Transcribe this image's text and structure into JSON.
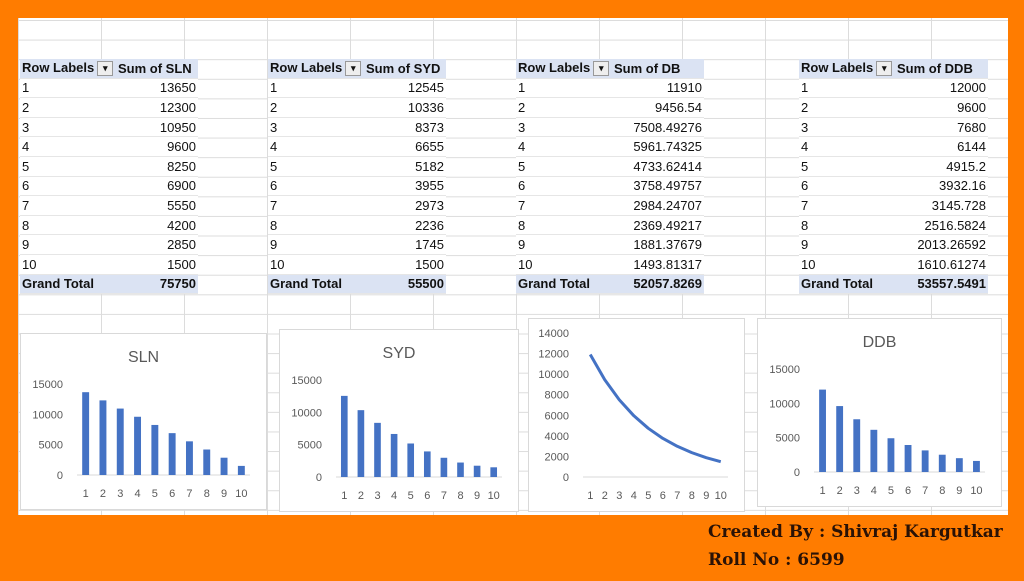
{
  "tables": [
    {
      "row_label": "Row Labels",
      "header": "Sum of SLN",
      "rows": [
        "1",
        "2",
        "3",
        "4",
        "5",
        "6",
        "7",
        "8",
        "9",
        "10"
      ],
      "values": [
        "13650",
        "12300",
        "10950",
        "9600",
        "8250",
        "6900",
        "5550",
        "4200",
        "2850",
        "1500"
      ],
      "total_label": "Grand Total",
      "total": "75750"
    },
    {
      "row_label": "Row Labels",
      "header": "Sum of SYD",
      "rows": [
        "1",
        "2",
        "3",
        "4",
        "5",
        "6",
        "7",
        "8",
        "9",
        "10"
      ],
      "values": [
        "12545",
        "10336",
        "8373",
        "6655",
        "5182",
        "3955",
        "2973",
        "2236",
        "1745",
        "1500"
      ],
      "total_label": "Grand Total",
      "total": "55500"
    },
    {
      "row_label": "Row Labels",
      "header": "Sum of DB",
      "rows": [
        "1",
        "2",
        "3",
        "4",
        "5",
        "6",
        "7",
        "8",
        "9",
        "10"
      ],
      "values": [
        "11910",
        "9456.54",
        "7508.49276",
        "5961.74325",
        "4733.62414",
        "3758.49757",
        "2984.24707",
        "2369.49217",
        "1881.37679",
        "1493.81317"
      ],
      "total_label": "Grand Total",
      "total": "52057.8269"
    },
    {
      "row_label": "Row Labels",
      "header": "Sum of DDB",
      "rows": [
        "1",
        "2",
        "3",
        "4",
        "5",
        "6",
        "7",
        "8",
        "9",
        "10"
      ],
      "values": [
        "12000",
        "9600",
        "7680",
        "6144",
        "4915.2",
        "3932.16",
        "3145.728",
        "2516.5824",
        "2013.26592",
        "1610.61274"
      ],
      "total_label": "Grand Total",
      "total": "53557.5491"
    }
  ],
  "chart_data": [
    {
      "type": "bar",
      "title": "SLN",
      "categories": [
        "1",
        "2",
        "3",
        "4",
        "5",
        "6",
        "7",
        "8",
        "9",
        "10"
      ],
      "values": [
        13650,
        12300,
        10950,
        9600,
        8250,
        6900,
        5550,
        4200,
        2850,
        1500
      ],
      "ylim": [
        0,
        15000
      ],
      "yticks": [
        "0",
        "5000",
        "10000",
        "15000"
      ],
      "color": "#4472c4"
    },
    {
      "type": "bar",
      "title": "SYD",
      "categories": [
        "1",
        "2",
        "3",
        "4",
        "5",
        "6",
        "7",
        "8",
        "9",
        "10"
      ],
      "values": [
        12545,
        10336,
        8373,
        6655,
        5182,
        3955,
        2973,
        2236,
        1745,
        1500
      ],
      "ylim": [
        0,
        15000
      ],
      "yticks": [
        "0",
        "5000",
        "10000",
        "15000"
      ],
      "color": "#4472c4"
    },
    {
      "type": "line",
      "title": "",
      "categories": [
        "1",
        "2",
        "3",
        "4",
        "5",
        "6",
        "7",
        "8",
        "9",
        "10"
      ],
      "values": [
        11910,
        9456.54,
        7508.49,
        5961.74,
        4733.62,
        3758.5,
        2984.25,
        2369.49,
        1881.38,
        1493.81
      ],
      "ylim": [
        0,
        14000
      ],
      "yticks": [
        "0",
        "2000",
        "4000",
        "6000",
        "8000",
        "10000",
        "12000",
        "14000"
      ],
      "color": "#4472c4"
    },
    {
      "type": "bar",
      "title": "DDB",
      "categories": [
        "1",
        "2",
        "3",
        "4",
        "5",
        "6",
        "7",
        "8",
        "9",
        "10"
      ],
      "values": [
        12000,
        9600,
        7680,
        6144,
        4915.2,
        3932.16,
        3145.73,
        2516.58,
        2013.27,
        1610.61
      ],
      "ylim": [
        0,
        15000
      ],
      "yticks": [
        "0",
        "5000",
        "10000",
        "15000"
      ],
      "color": "#4472c4"
    }
  ],
  "footer": {
    "created_by": "Created By : Shivraj Kargutkar",
    "roll_no": "Roll No : 6599"
  }
}
